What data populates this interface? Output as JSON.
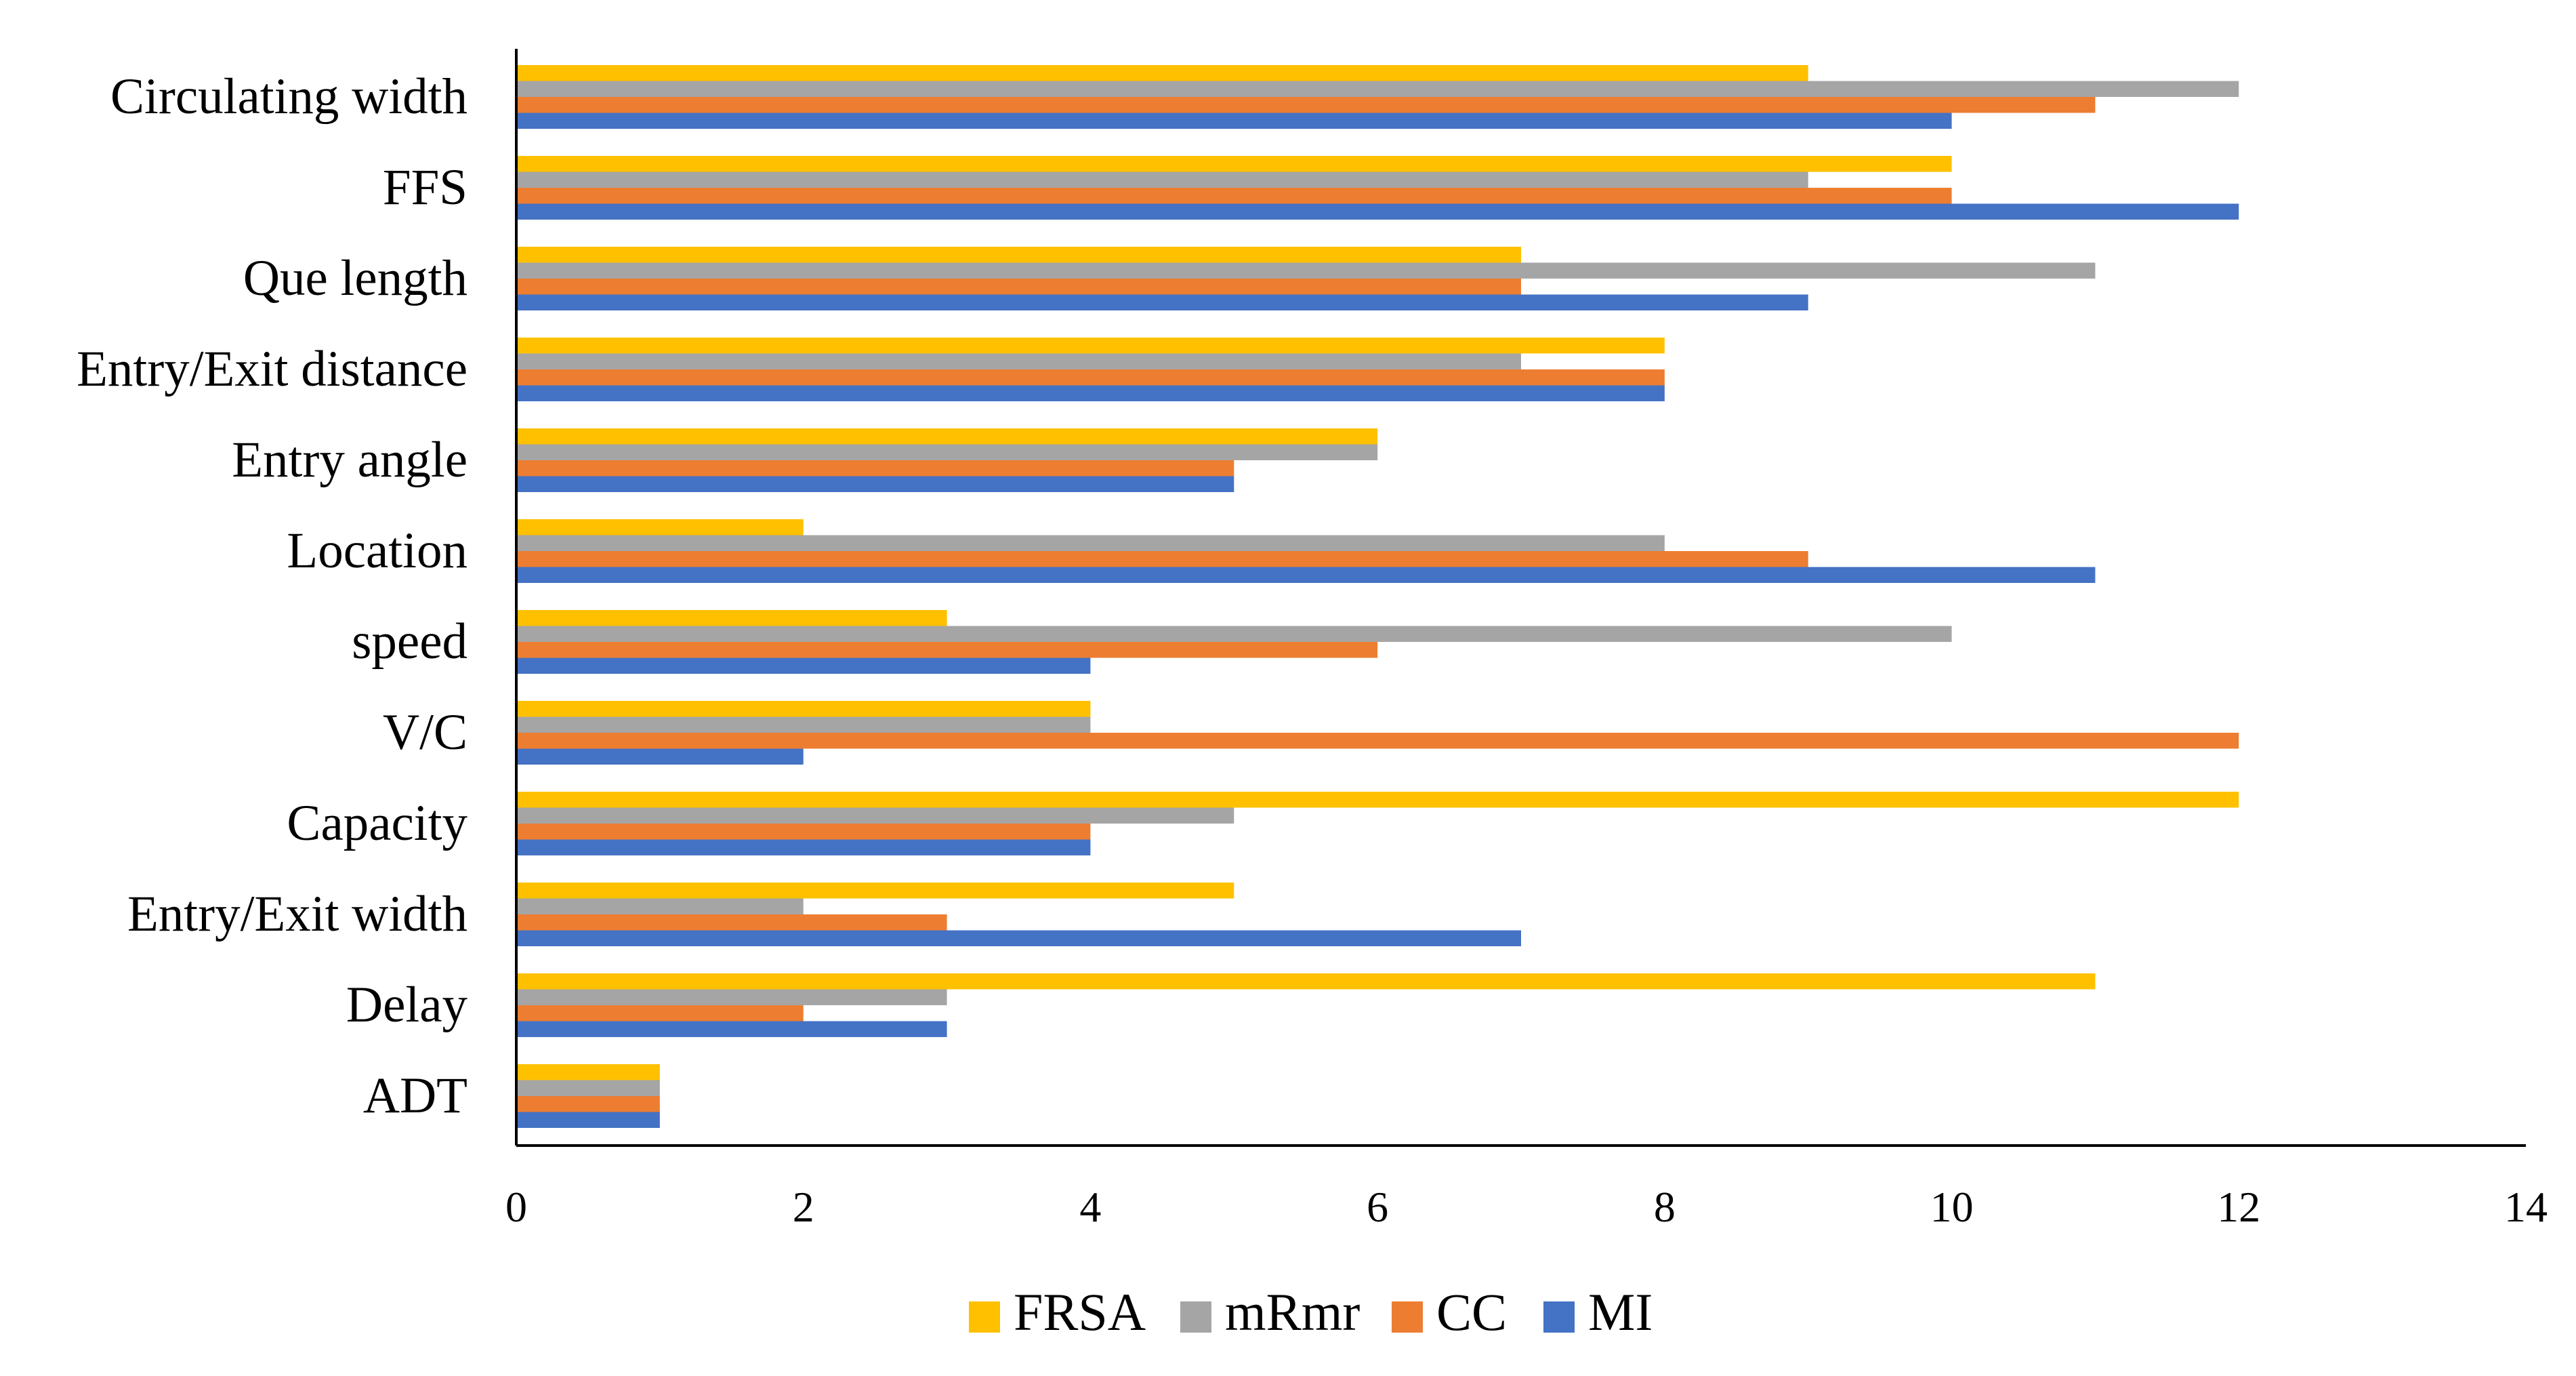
{
  "chart_data": {
    "type": "bar",
    "orientation": "horizontal",
    "title": "",
    "xlabel": "",
    "ylabel": "",
    "xlim": [
      0,
      14
    ],
    "x_ticks": [
      0,
      2,
      4,
      6,
      8,
      10,
      12,
      14
    ],
    "grid": false,
    "legend_position": "bottom",
    "categories": [
      "Circulating width",
      "FFS",
      "Que length",
      "Entry/Exit distance",
      "Entry angle",
      "Location",
      "speed",
      "V/C",
      "Capacity",
      "Entry/Exit width",
      "Delay",
      "ADT"
    ],
    "series": [
      {
        "name": "FRSA",
        "color": "#FFC000",
        "values": [
          9,
          10,
          7,
          8,
          6,
          2,
          3,
          4,
          12,
          5,
          11,
          1
        ]
      },
      {
        "name": "mRmr",
        "color": "#A5A5A5",
        "values": [
          12,
          9,
          11,
          7,
          6,
          8,
          10,
          4,
          5,
          2,
          3,
          1
        ]
      },
      {
        "name": "CC",
        "color": "#ED7D31",
        "values": [
          11,
          10,
          7,
          8,
          5,
          9,
          6,
          12,
          4,
          3,
          2,
          1
        ]
      },
      {
        "name": "MI",
        "color": "#4472C4",
        "values": [
          10,
          12,
          9,
          8,
          5,
          11,
          4,
          2,
          4,
          7,
          3,
          1
        ]
      }
    ]
  }
}
